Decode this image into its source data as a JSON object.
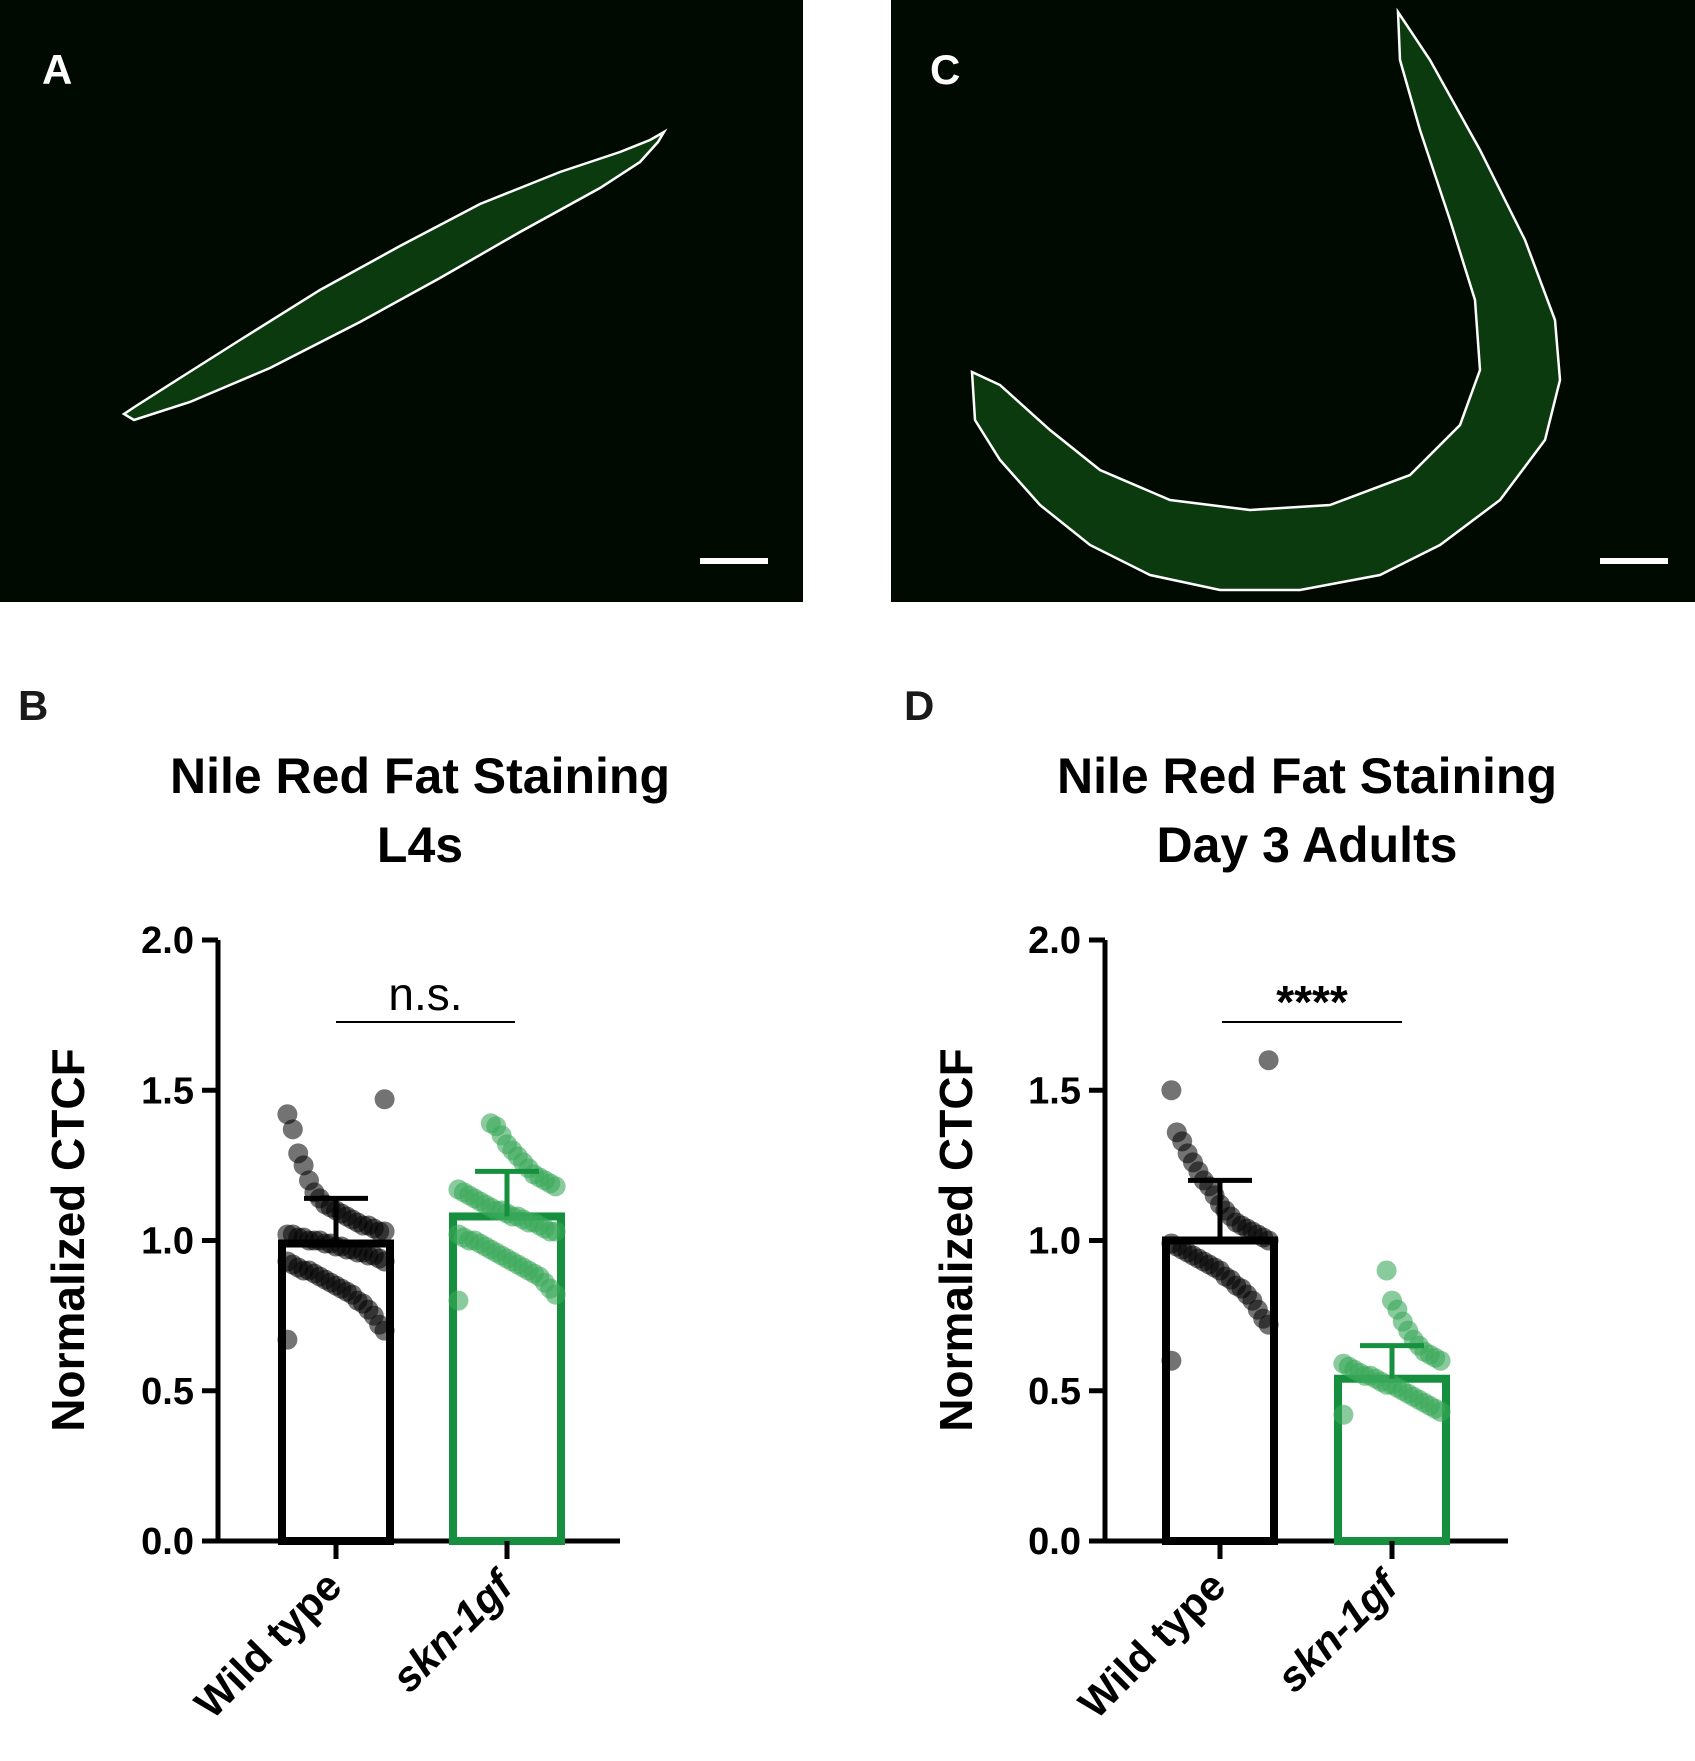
{
  "panels": [
    {
      "letter": "A",
      "kind": "image"
    },
    {
      "letter": "C",
      "kind": "image"
    },
    {
      "letter": "B",
      "kind": "chart"
    },
    {
      "letter": "D",
      "kind": "chart"
    }
  ],
  "colors": {
    "image_bg": "#000a00",
    "worm_fill": "#0c3a0f",
    "worm_outline": "#ffffff",
    "scale_bar": "#ffffff",
    "wild_type": "#000000",
    "mutant": "#168f3e",
    "mutant_dots": "#3aa85a"
  },
  "chart_data": [
    {
      "type": "bar",
      "panel": "B",
      "title": [
        "Nile Red Fat Staining",
        "L4s"
      ],
      "ylabel": "Normalized CTCF",
      "xlabel": "",
      "ylim": [
        0,
        2.0
      ],
      "yticks": [
        "0.0",
        "0.5",
        "1.0",
        "1.5",
        "2.0"
      ],
      "categories": [
        "Wild type",
        "skn-1gf"
      ],
      "values": [
        0.99,
        1.08
      ],
      "error_sd": [
        0.15,
        0.15
      ],
      "significance": "n.s.",
      "points": [
        [
          0.67,
          0.7,
          0.72,
          0.75,
          0.77,
          0.79,
          0.8,
          0.82,
          0.83,
          0.84,
          0.85,
          0.86,
          0.87,
          0.88,
          0.89,
          0.9,
          0.9,
          0.91,
          0.92,
          0.93,
          0.93,
          0.94,
          0.95,
          0.95,
          0.96,
          0.96,
          0.97,
          0.97,
          0.98,
          0.98,
          0.99,
          0.99,
          1.0,
          1.0,
          1.0,
          1.01,
          1.01,
          1.02,
          1.02,
          1.03,
          1.03,
          1.04,
          1.05,
          1.05,
          1.06,
          1.07,
          1.08,
          1.09,
          1.1,
          1.11,
          1.12,
          1.14,
          1.16,
          1.2,
          1.25,
          1.29,
          1.37,
          1.42,
          1.47
        ],
        [
          0.8,
          0.82,
          0.84,
          0.86,
          0.88,
          0.89,
          0.9,
          0.91,
          0.92,
          0.93,
          0.94,
          0.95,
          0.96,
          0.97,
          0.98,
          0.99,
          1.0,
          1.0,
          1.01,
          1.02,
          1.03,
          1.03,
          1.04,
          1.05,
          1.06,
          1.06,
          1.07,
          1.08,
          1.08,
          1.09,
          1.1,
          1.1,
          1.11,
          1.12,
          1.13,
          1.14,
          1.15,
          1.16,
          1.17,
          1.18,
          1.19,
          1.2,
          1.21,
          1.22,
          1.24,
          1.26,
          1.28,
          1.3,
          1.32,
          1.35,
          1.38,
          1.39
        ]
      ]
    },
    {
      "type": "bar",
      "panel": "D",
      "title": [
        "Nile Red Fat Staining",
        "Day 3 Adults"
      ],
      "ylabel": "Normalized CTCF",
      "xlabel": "",
      "ylim": [
        0,
        2.0
      ],
      "yticks": [
        "0.0",
        "0.5",
        "1.0",
        "1.5",
        "2.0"
      ],
      "categories": [
        "Wild type",
        "skn-1gf"
      ],
      "values": [
        1.0,
        0.54
      ],
      "error_sd": [
        0.2,
        0.11
      ],
      "significance": "****",
      "points": [
        [
          0.6,
          0.72,
          0.74,
          0.77,
          0.8,
          0.82,
          0.84,
          0.85,
          0.87,
          0.88,
          0.9,
          0.91,
          0.92,
          0.93,
          0.94,
          0.95,
          0.96,
          0.97,
          0.98,
          0.99,
          1.0,
          1.01,
          1.02,
          1.03,
          1.04,
          1.05,
          1.06,
          1.08,
          1.1,
          1.12,
          1.15,
          1.18,
          1.2,
          1.23,
          1.26,
          1.29,
          1.33,
          1.36,
          1.5,
          1.6
        ],
        [
          0.42,
          0.43,
          0.44,
          0.45,
          0.46,
          0.47,
          0.48,
          0.49,
          0.5,
          0.51,
          0.52,
          0.52,
          0.53,
          0.54,
          0.55,
          0.55,
          0.56,
          0.57,
          0.58,
          0.59,
          0.6,
          0.61,
          0.62,
          0.63,
          0.65,
          0.67,
          0.7,
          0.73,
          0.77,
          0.8,
          0.9
        ]
      ]
    }
  ]
}
